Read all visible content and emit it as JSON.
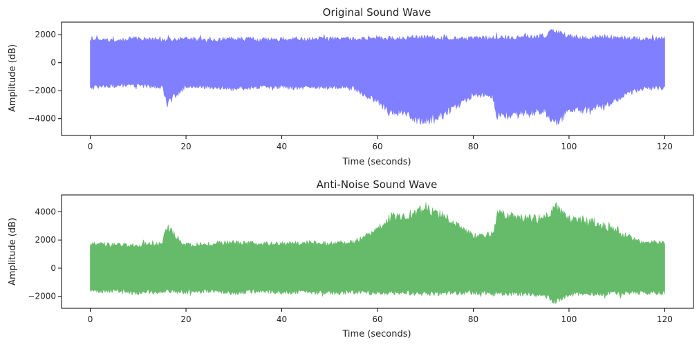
{
  "chart_data": [
    {
      "type": "area",
      "title": "Original Sound Wave",
      "xlabel": "Time (seconds)",
      "ylabel": "Amplitude (dB)",
      "xlim": [
        -6,
        126
      ],
      "ylim": [
        -5200,
        2900
      ],
      "xticks": [
        0,
        20,
        40,
        60,
        80,
        100,
        120
      ],
      "yticks": [
        -4000,
        -2000,
        0,
        2000
      ],
      "ytick_labels": [
        "−4000",
        "−2000",
        "0",
        "2000"
      ],
      "grid": false,
      "color": "#7f7fff",
      "series": [
        {
          "x": [
            0,
            5,
            10,
            15,
            16,
            20,
            25,
            30,
            35,
            40,
            45,
            50,
            55,
            60,
            63,
            65,
            70,
            75,
            80,
            84,
            85,
            90,
            95,
            97,
            100,
            105,
            110,
            115,
            120
          ],
          "upper": [
            1800,
            1750,
            1900,
            1800,
            1850,
            1850,
            1750,
            1900,
            1800,
            1850,
            1850,
            1900,
            1900,
            1950,
            1900,
            1900,
            2000,
            1950,
            1900,
            1950,
            2000,
            2000,
            2100,
            2600,
            2000,
            2000,
            1950,
            1900,
            1900
          ],
          "lower": [
            -1900,
            -1800,
            -1800,
            -1900,
            -3200,
            -1800,
            -1900,
            -2000,
            -1900,
            -1900,
            -2000,
            -1900,
            -2000,
            -3000,
            -4000,
            -3900,
            -4700,
            -3800,
            -2500,
            -2600,
            -4200,
            -4000,
            -3800,
            -4800,
            -3800,
            -3600,
            -2900,
            -2000,
            -2000
          ]
        }
      ]
    },
    {
      "type": "area",
      "title": "Anti-Noise Sound Wave",
      "xlabel": "Time (seconds)",
      "ylabel": "Amplitude (dB)",
      "xlim": [
        -6,
        126
      ],
      "ylim": [
        -2850,
        5200
      ],
      "xticks": [
        0,
        20,
        40,
        60,
        80,
        100,
        120
      ],
      "yticks": [
        -2000,
        0,
        2000,
        4000
      ],
      "ytick_labels": [
        "−2000",
        "0",
        "2000",
        "4000"
      ],
      "grid": false,
      "color": "#66bb6a",
      "series": [
        {
          "x": [
            0,
            5,
            10,
            15,
            16,
            20,
            25,
            30,
            35,
            40,
            45,
            50,
            55,
            60,
            63,
            65,
            70,
            75,
            80,
            84,
            85,
            90,
            95,
            97,
            100,
            105,
            110,
            115,
            120
          ],
          "upper": [
            1900,
            1800,
            1800,
            1900,
            3200,
            1800,
            1900,
            2000,
            1900,
            1900,
            2000,
            1900,
            2000,
            3000,
            4000,
            3900,
            4700,
            3800,
            2500,
            2600,
            4200,
            4000,
            3800,
            4800,
            3800,
            3600,
            2900,
            2000,
            2000
          ],
          "lower": [
            -1800,
            -1750,
            -1900,
            -1800,
            -1850,
            -1850,
            -1750,
            -1900,
            -1800,
            -1850,
            -1850,
            -1900,
            -1900,
            -1950,
            -1900,
            -1900,
            -2000,
            -1950,
            -1900,
            -1950,
            -2000,
            -2000,
            -2100,
            -2600,
            -2000,
            -2000,
            -1950,
            -1900,
            -1900
          ]
        }
      ]
    }
  ]
}
